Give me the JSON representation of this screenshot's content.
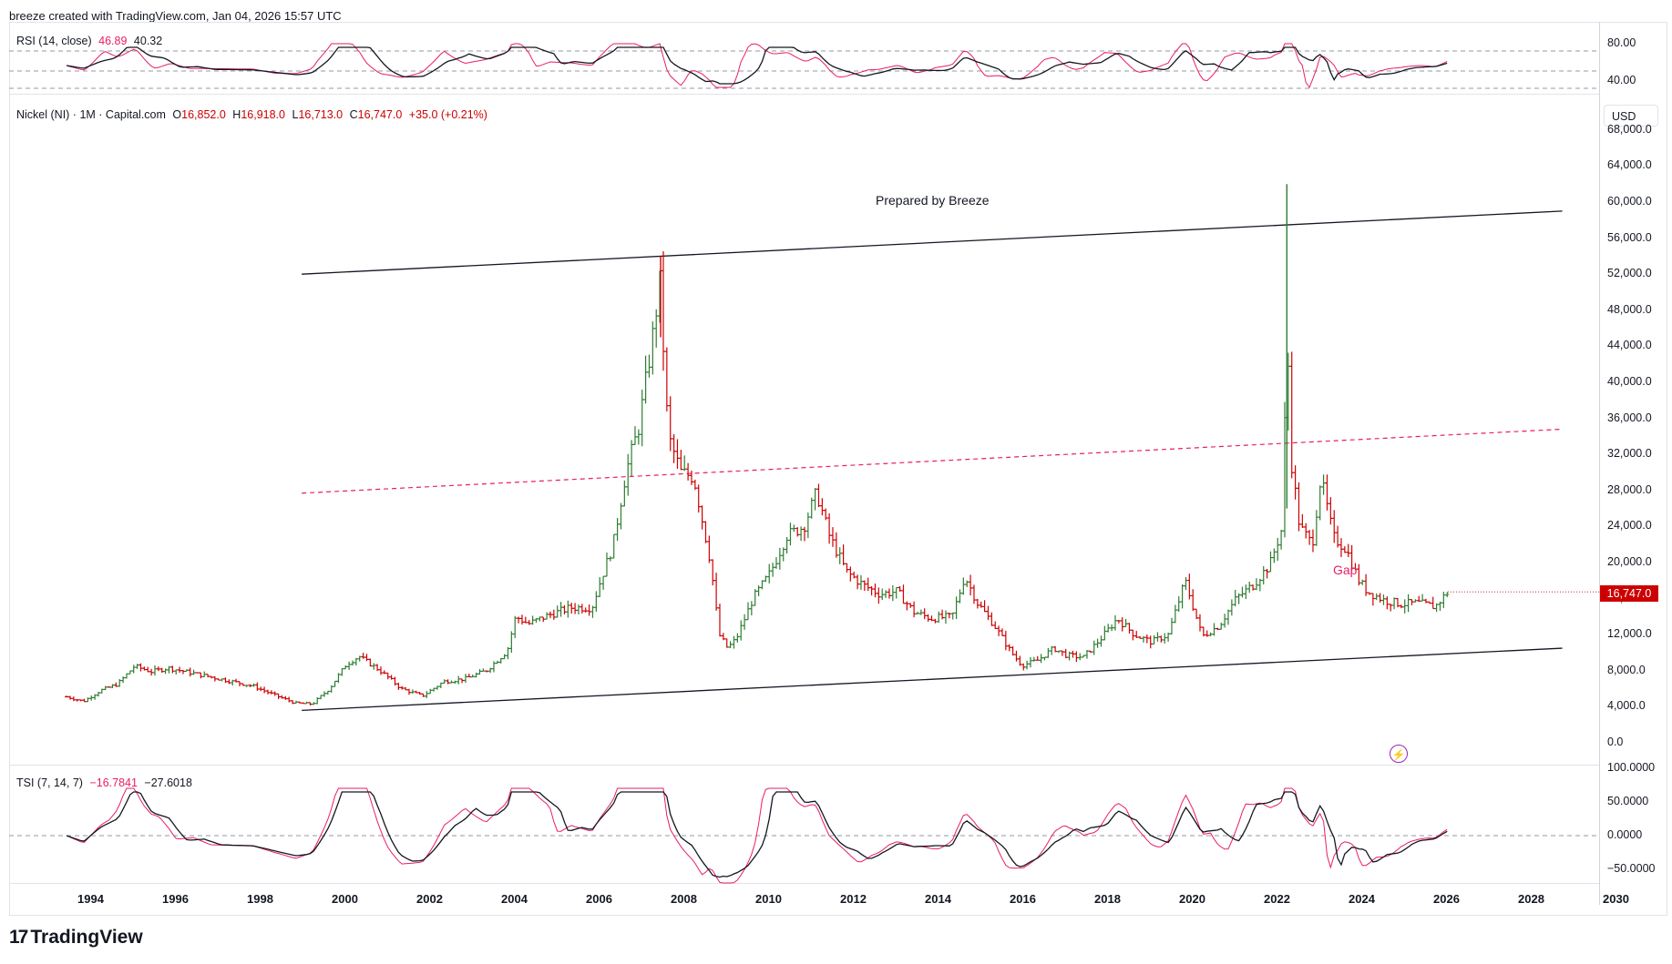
{
  "header": {
    "credit": "breeze created with TradingView.com, Jan 04, 2026 15:57 UTC"
  },
  "rsi": {
    "name": "RSI (14, close)",
    "value": "46.89",
    "ma_value": "40.32",
    "color": "#e91e63",
    "ma_color": "#131722",
    "ticks": [
      "80.00",
      "40.00"
    ]
  },
  "main": {
    "symbol": "Nickel (NI) · 1M · Capital.com",
    "o_label": "O",
    "o_value": "16,852.0",
    "h_label": "H",
    "h_value": "16,918.0",
    "l_label": "L",
    "l_value": "16,713.0",
    "c_label": "C",
    "c_value": "16,747.0",
    "change": "+35.0 (+0.21%)",
    "currency": "USD",
    "last_price": "16,747.0",
    "annotation": "Prepared by Breeze",
    "gap_label": "Gap",
    "up_color": "#2e7d32",
    "down_color": "#cc0000"
  },
  "tsi": {
    "name": "TSI (7, 14, 7)",
    "value": "−16.7841",
    "signal": "−27.6018",
    "ticks": [
      "100.0000",
      "50.0000",
      "0.0000",
      "−50.0000"
    ]
  },
  "footer": {
    "brand": "TradingView",
    "brand_mark": "17"
  },
  "chart_data": [
    {
      "type": "line",
      "title": "Nickel (NI) · 1M · Capital.com",
      "y_ticks": [
        "68,000.0",
        "64,000.0",
        "60,000.0",
        "56,000.0",
        "52,000.0",
        "48,000.0",
        "44,000.0",
        "40,000.0",
        "36,000.0",
        "32,000.0",
        "28,000.0",
        "24,000.0",
        "20,000.0",
        "16,000.0",
        "12,000.0",
        "8,000.0",
        "4,000.0",
        "0.0"
      ],
      "x_ticks": [
        "1994",
        "1996",
        "1998",
        "2000",
        "2002",
        "2004",
        "2006",
        "2008",
        "2010",
        "2012",
        "2014",
        "2016",
        "2018",
        "2020",
        "2022",
        "2024",
        "2026",
        "2028",
        "2030"
      ],
      "ylim": [
        0,
        68000
      ],
      "xlim": [
        1992.7,
        2030.3
      ],
      "series": [
        {
          "x": [
            1993.4,
            1993.8,
            1994.2,
            1994.6,
            1995.0,
            1995.4,
            1995.8,
            1996.3,
            1996.8,
            1997.3,
            1997.8,
            1998.3,
            1998.8,
            1999.2,
            1999.6,
            2000.0,
            2000.3,
            2000.8,
            2001.3,
            2001.8,
            2002.3,
            2002.8,
            2003.3,
            2003.8,
            2004.0,
            2004.3,
            2004.8,
            2005.3,
            2005.8,
            2006.0,
            2006.3,
            2006.6,
            2006.9,
            2007.2,
            2007.4,
            2007.6,
            2007.9,
            2008.2,
            2008.6,
            2008.8,
            2009.0,
            2009.2,
            2009.6,
            2010.0,
            2010.4,
            2010.8,
            2011.1,
            2011.4,
            2011.8,
            2012.2,
            2012.6,
            2013.0,
            2013.4,
            2013.8,
            2014.3,
            2014.6,
            2014.9,
            2015.3,
            2015.7,
            2015.95,
            2016.3,
            2016.7,
            2017.0,
            2017.4,
            2017.8,
            2018.2,
            2018.6,
            2019.0,
            2019.4,
            2019.8,
            2020.2,
            2020.6,
            2021.0,
            2021.4,
            2021.8,
            2022.1,
            2022.2,
            2022.3,
            2022.5,
            2022.8,
            2023.0,
            2023.3,
            2023.6,
            2023.9,
            2024.1,
            2024.5,
            2024.9,
            2025.3,
            2025.7,
            2026.0
          ],
          "y": [
            5100,
            4600,
            5800,
            6500,
            8500,
            7900,
            8300,
            7800,
            7300,
            6800,
            6300,
            5300,
            4400,
            4300,
            6000,
            8700,
            9600,
            8000,
            6000,
            5200,
            6800,
            7100,
            8000,
            10200,
            14000,
            13200,
            14200,
            15000,
            15000,
            18000,
            22000,
            30000,
            35000,
            44000,
            51000,
            34000,
            30000,
            29500,
            20000,
            12000,
            10500,
            11500,
            16000,
            18800,
            23000,
            24000,
            27800,
            23000,
            19000,
            17500,
            16500,
            16800,
            14500,
            13800,
            14000,
            18500,
            15500,
            13000,
            10000,
            8600,
            9100,
            10500,
            9700,
            9500,
            11500,
            13800,
            12000,
            11200,
            12000,
            18000,
            11800,
            13000,
            16000,
            17500,
            19800,
            24000,
            47000,
            31500,
            24000,
            22000,
            29500,
            22800,
            21500,
            18000,
            16800,
            15800,
            15400,
            15500,
            15100,
            16747
          ],
          "up_color": "#2e7d32",
          "down_color": "#cc0000"
        }
      ],
      "annotations": [
        "Prepared by Breeze",
        "Gap"
      ]
    },
    {
      "type": "line",
      "title": "RSI (14, close)",
      "y_ticks": [
        "80.00",
        "40.00"
      ]
    },
    {
      "type": "line",
      "title": "TSI (7, 14, 7)",
      "y_ticks": [
        "100.0000",
        "50.0000",
        "0.0000",
        "−50.0000"
      ]
    }
  ]
}
